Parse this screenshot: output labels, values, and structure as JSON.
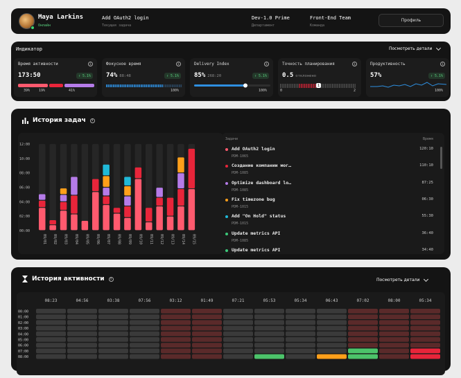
{
  "header": {
    "name": "Maya Larkins",
    "status": "Онлайн",
    "task": "Add OAuth2 login",
    "task_label": "Текущая задача",
    "department": "Dev-1.0 Prime",
    "department_label": "Департамент",
    "team": "Front-End Team",
    "team_label": "Команда",
    "profile_button": "Профиль"
  },
  "indicator": {
    "title": "Индикатор",
    "view_details": "Посмотреть детали",
    "metrics": [
      {
        "title": "Время активности",
        "value": "173:50",
        "sub": "",
        "badge": "↑ 5.1%",
        "labels": [
          "39%",
          "19%",
          "41%"
        ],
        "segments": [
          0.39,
          0.19,
          0.41
        ]
      },
      {
        "title": "Фокусное время",
        "value": "74%",
        "sub": "88:48",
        "badge": "↑ 5.1%",
        "labels": [
          "0",
          "100%"
        ],
        "fill": 0.74
      },
      {
        "title": "Delivery Index",
        "value": "85%",
        "sub": "268:20",
        "badge": "↑ 5.1%",
        "labels": [
          "0",
          "100%"
        ],
        "fill": 0.85
      },
      {
        "title": "Точность планирования",
        "value": "0.5",
        "sub": "отклонено",
        "badge": "",
        "labels": [
          "0",
          "2"
        ],
        "marker": "1",
        "fill": 0.5
      },
      {
        "title": "Продуктивность",
        "value": "57%",
        "sub": "",
        "badge": "↑ 5.1%",
        "labels": [
          "0",
          "100%"
        ],
        "fill": 0.57
      }
    ]
  },
  "tasks": {
    "title": "История задач",
    "list_header": "Задачи",
    "time_header": "Время",
    "y_ticks": [
      "12:00",
      "10:00",
      "08:00",
      "06:00",
      "04:00",
      "02:00",
      "00:00"
    ],
    "colors": {
      "red": "#ff5a6e",
      "crimson": "#e8253a",
      "purple": "#b57be8",
      "orange": "#ff9f1a",
      "cyan": "#20b9d8",
      "green": "#3cc87a"
    },
    "items": [
      {
        "name": "Add OAuth2 login",
        "id": "PDM-1065",
        "time": "120:10",
        "color": "#ff5a6e"
      },
      {
        "name": "Создание компании мог…",
        "id": "PDM-1085",
        "time": "110:10",
        "color": "#e8253a"
      },
      {
        "name": "Optimize dashboard lo…",
        "id": "PDM-1085",
        "time": "87:25",
        "color": "#b57be8"
      },
      {
        "name": "Fix timezone bug",
        "id": "PDM-1015",
        "time": "06:30",
        "color": "#ff9f1a"
      },
      {
        "name": "Add \"On Hold\" status",
        "id": "PDM-1015",
        "time": "55:30",
        "color": "#20b9d8"
      },
      {
        "name": "Update metrics API",
        "id": "PDM-1085",
        "time": "36:40",
        "color": "#3cc87a"
      },
      {
        "name": "Update metrics API",
        "id": "",
        "time": "34:40",
        "color": "#3cc87a"
      }
    ]
  },
  "chart_data": {
    "type": "bar",
    "categories": [
      "09/01",
      "09/02",
      "09/03",
      "09/04",
      "09/05",
      "09/06",
      "09/07",
      "09/08",
      "09/09",
      "09/10",
      "09/11",
      "09/12",
      "09/13",
      "09/14",
      "09/15"
    ],
    "ylim": [
      0,
      12
    ],
    "stacks": [
      [
        [
          3.2,
          "#ff5a6e"
        ],
        [
          1.0,
          "#e8253a"
        ],
        [
          0.9,
          "#b57be8"
        ]
      ],
      [
        [
          0.8,
          "#ff5a6e"
        ],
        [
          0.7,
          "#e8253a"
        ]
      ],
      [
        [
          2.8,
          "#ff5a6e"
        ],
        [
          1.2,
          "#e8253a"
        ],
        [
          1.0,
          "#b57be8"
        ],
        [
          0.9,
          "#ff9f1a"
        ]
      ],
      [
        [
          2.3,
          "#ff5a6e"
        ],
        [
          2.6,
          "#e8253a"
        ],
        [
          2.6,
          "#b57be8"
        ]
      ],
      [
        [
          1.4,
          "#ff5a6e"
        ]
      ],
      [
        [
          5.4,
          "#ff5a6e"
        ],
        [
          1.8,
          "#e8253a"
        ]
      ],
      [
        [
          3.6,
          "#ff5a6e"
        ],
        [
          1.2,
          "#e8253a"
        ],
        [
          1.2,
          "#b57be8"
        ],
        [
          1.6,
          "#ff9f1a"
        ],
        [
          1.6,
          "#20b9d8"
        ]
      ],
      [
        [
          2.4,
          "#ff5a6e"
        ],
        [
          0.8,
          "#e8253a"
        ]
      ],
      [
        [
          1.8,
          "#ff5a6e"
        ],
        [
          1.6,
          "#e8253a"
        ],
        [
          1.4,
          "#b57be8"
        ],
        [
          1.4,
          "#ff9f1a"
        ],
        [
          1.3,
          "#20b9d8"
        ]
      ],
      [
        [
          7.2,
          "#ff5a6e"
        ],
        [
          1.6,
          "#e8253a"
        ]
      ],
      [
        [
          1.2,
          "#ff5a6e"
        ],
        [
          2.0,
          "#e8253a"
        ]
      ],
      [
        [
          3.4,
          "#ff5a6e"
        ],
        [
          1.2,
          "#e8253a"
        ],
        [
          1.4,
          "#b57be8"
        ]
      ],
      [
        [
          2.0,
          "#ff5a6e"
        ],
        [
          2.6,
          "#e8253a"
        ]
      ],
      [
        [
          3.4,
          "#ff5a6e"
        ],
        [
          2.4,
          "#e8253a"
        ],
        [
          2.2,
          "#b57be8"
        ],
        [
          2.2,
          "#ff9f1a"
        ]
      ],
      [
        [
          5.8,
          "#ff5a6e"
        ],
        [
          5.6,
          "#e8253a"
        ]
      ]
    ]
  },
  "activity": {
    "title": "История активности",
    "view_details": "Посмотреть детали",
    "columns": [
      "08:23",
      "04:56",
      "03:38",
      "07:56",
      "03:12",
      "01:49",
      "07:21",
      "05:53",
      "05:34",
      "06:43",
      "07:02",
      "08:00",
      "05:34"
    ],
    "rows": [
      "00:00",
      "01:00",
      "02:00",
      "03:00",
      "04:00",
      "05:00",
      "06:00",
      "07:00",
      "08:00"
    ],
    "cells": [
      "ggggrrggggrrr",
      "ggggrrggggrrr",
      "ggggrrggggrrr",
      "ggggrrggggrrr",
      "ggggrrggggrrr",
      "ggggrrggggrrr",
      "ggggrrggggrrr",
      "ggggrrggggGrR",
      "ggggrrgGgOGrR"
    ]
  }
}
